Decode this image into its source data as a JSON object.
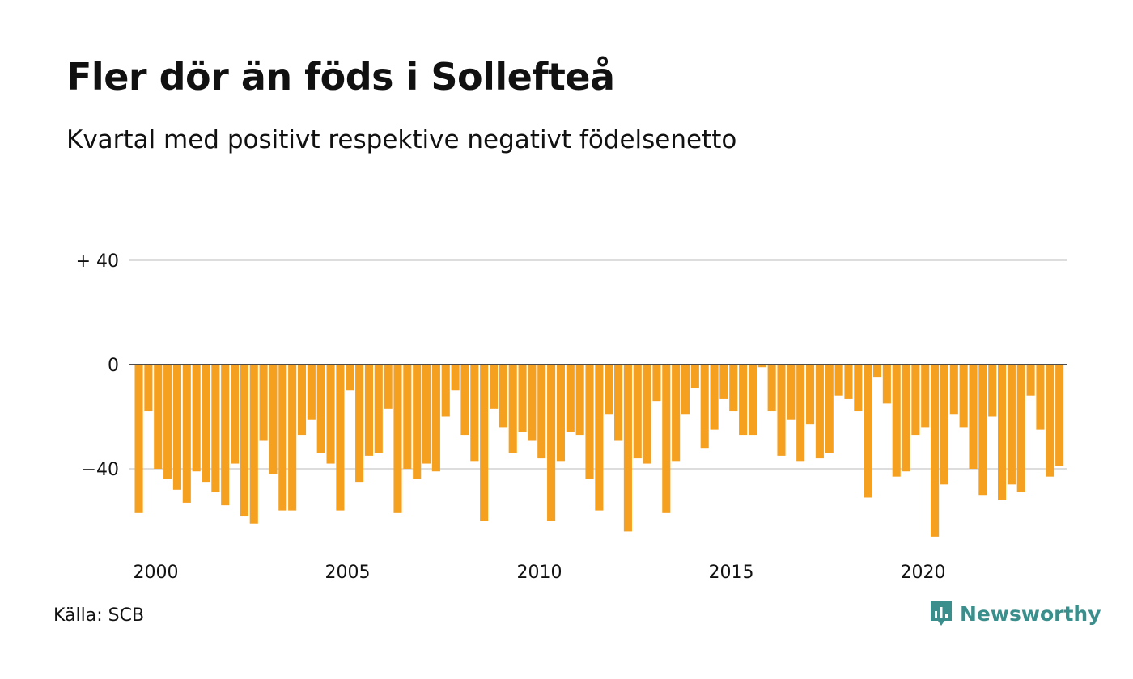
{
  "title": "Fler dör än föds i Sollefteå",
  "subtitle": "Kvartal med positivt respektive negativt födelsenetto",
  "source": "Källa: SCB",
  "brand": {
    "name": "Newsworthy",
    "icon": "newsworthy-logo-icon",
    "color": "#3a8f8c"
  },
  "colors": {
    "bar": "#f5a01f",
    "grid": "#dddddd",
    "zero_line": "#111111"
  },
  "chart_data": {
    "type": "bar",
    "title": "Fler dör än föds i Sollefteå",
    "subtitle": "Kvartal med positivt respektive negativt födelsenetto",
    "xlabel": "",
    "ylabel": "",
    "ylim": [
      -66,
      40
    ],
    "y_ticks": [
      {
        "value": 40,
        "label": "+ 40"
      },
      {
        "value": 0,
        "label": "0"
      },
      {
        "value": -40,
        "label": "−40"
      }
    ],
    "x_ticks": [
      {
        "value": 2000,
        "label": "2000"
      },
      {
        "value": 2005,
        "label": "2005"
      },
      {
        "value": 2010,
        "label": "2010"
      },
      {
        "value": 2015,
        "label": "2015"
      },
      {
        "value": 2020,
        "label": "2020"
      }
    ],
    "grid": true,
    "start_year": 2000,
    "periods_per_year": 4,
    "series": [
      {
        "values": [
          -57,
          -18,
          -40,
          -44,
          -48,
          -53,
          -41,
          -45,
          -49,
          -54,
          -38,
          -58,
          -61,
          -29,
          -42,
          -56,
          -56,
          -27,
          -21,
          -34,
          -38,
          -56,
          -10,
          -45,
          -35,
          -34,
          -17,
          -57,
          -40,
          -44,
          -38,
          -41,
          -20,
          -10,
          -27,
          -37,
          -60,
          -17,
          -24,
          -34,
          -26,
          -29,
          -36,
          -60,
          -37,
          -26,
          -27,
          -44,
          -56,
          -19,
          -29,
          -64,
          -36,
          -38,
          -14,
          -57,
          -37,
          -19,
          -9,
          -32,
          -25,
          -13,
          -18,
          -27,
          -27,
          -1,
          -18,
          -35,
          -21,
          -37,
          -23,
          -36,
          -34,
          -12,
          -13,
          -18,
          -51,
          -5,
          -15,
          -43,
          -41,
          -27,
          -24,
          -66,
          -46,
          -19,
          -24,
          -40,
          -50,
          -20,
          -52,
          -46,
          -49,
          -12,
          -25,
          -43,
          -39
        ]
      }
    ]
  }
}
